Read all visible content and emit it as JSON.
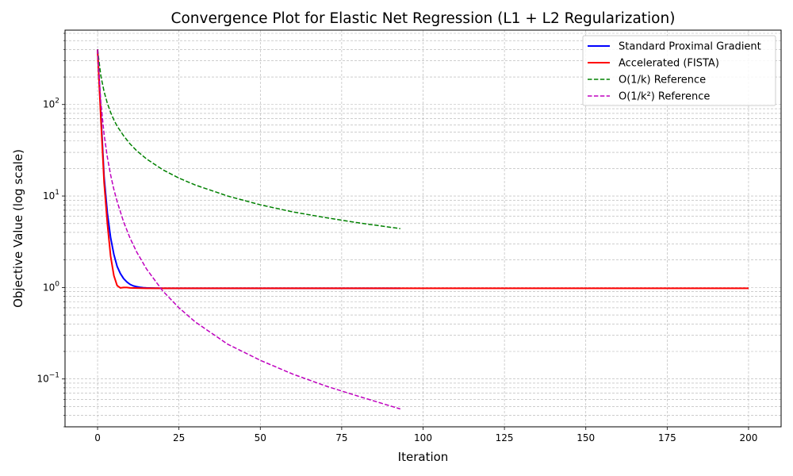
{
  "chart_data": {
    "type": "line",
    "title": "Convergence Plot for Elastic Net Regression (L1 + L2 Regularization)",
    "xlabel": "Iteration",
    "ylabel": "Objective Value (log scale)",
    "xlim": [
      -10,
      210
    ],
    "ylim": [
      0.03,
      650
    ],
    "yscale": "log",
    "grid": true,
    "legend_position": "top-right",
    "x_ticks": [
      0,
      25,
      50,
      75,
      100,
      125,
      150,
      175,
      200
    ],
    "x_tick_labels": [
      "0",
      "25",
      "50",
      "75",
      "100",
      "125",
      "150",
      "175",
      "200"
    ],
    "y_ticks": [
      0.1,
      1,
      10,
      100
    ],
    "y_tick_labels": [
      {
        "base": "10",
        "exp": "−1"
      },
      {
        "base": "10",
        "exp": "0"
      },
      {
        "base": "10",
        "exp": "1"
      },
      {
        "base": "10",
        "exp": "2"
      }
    ],
    "series": [
      {
        "name": "Standard Proximal Gradient",
        "color": "#0000ff",
        "style": "solid",
        "x": [
          0,
          1,
          2,
          3,
          4,
          5,
          6,
          7,
          8,
          9,
          10,
          11,
          12,
          13,
          14,
          15,
          17,
          20,
          25,
          30,
          40,
          60,
          80,
          93
        ],
        "y": [
          400,
          80,
          16,
          6.5,
          3.5,
          2.3,
          1.7,
          1.42,
          1.25,
          1.15,
          1.08,
          1.04,
          1.02,
          1.005,
          0.995,
          0.99,
          0.985,
          0.98,
          0.98,
          0.98,
          0.98,
          0.98,
          0.98,
          0.98
        ]
      },
      {
        "name": "Accelerated (FISTA)",
        "color": "#ff0000",
        "style": "solid",
        "x": [
          0,
          1,
          2,
          3,
          4,
          5,
          6,
          7,
          8,
          9,
          10,
          12,
          15,
          20,
          30,
          50,
          100,
          150,
          200
        ],
        "y": [
          400,
          70,
          14,
          5,
          2.2,
          1.35,
          1.05,
          0.99,
          1.0,
          1.0,
          0.99,
          0.985,
          0.98,
          0.98,
          0.98,
          0.98,
          0.98,
          0.98,
          0.98
        ]
      },
      {
        "name": "O(1/k) Reference",
        "color": "#008000",
        "style": "dashed",
        "x": [
          0,
          1,
          2,
          3,
          4,
          5,
          6,
          8,
          10,
          12,
          15,
          20,
          25,
          30,
          40,
          50,
          60,
          70,
          80,
          93
        ],
        "y": [
          400,
          205,
          138,
          103,
          82,
          68,
          58,
          45.5,
          37,
          31.3,
          25.5,
          19.4,
          15.7,
          13.2,
          10.0,
          8.0,
          6.7,
          5.8,
          5.1,
          4.4
        ]
      },
      {
        "name": "O(1/k²) Reference",
        "color": "#bf00bf",
        "style": "dashed",
        "x": [
          0,
          1,
          2,
          3,
          4,
          5,
          6,
          8,
          10,
          12,
          15,
          20,
          25,
          30,
          40,
          50,
          60,
          70,
          80,
          93
        ],
        "y": [
          400,
          105,
          47,
          26.5,
          17,
          11.8,
          8.7,
          5.2,
          3.45,
          2.45,
          1.6,
          0.92,
          0.6,
          0.42,
          0.24,
          0.16,
          0.113,
          0.084,
          0.065,
          0.047
        ]
      }
    ]
  }
}
